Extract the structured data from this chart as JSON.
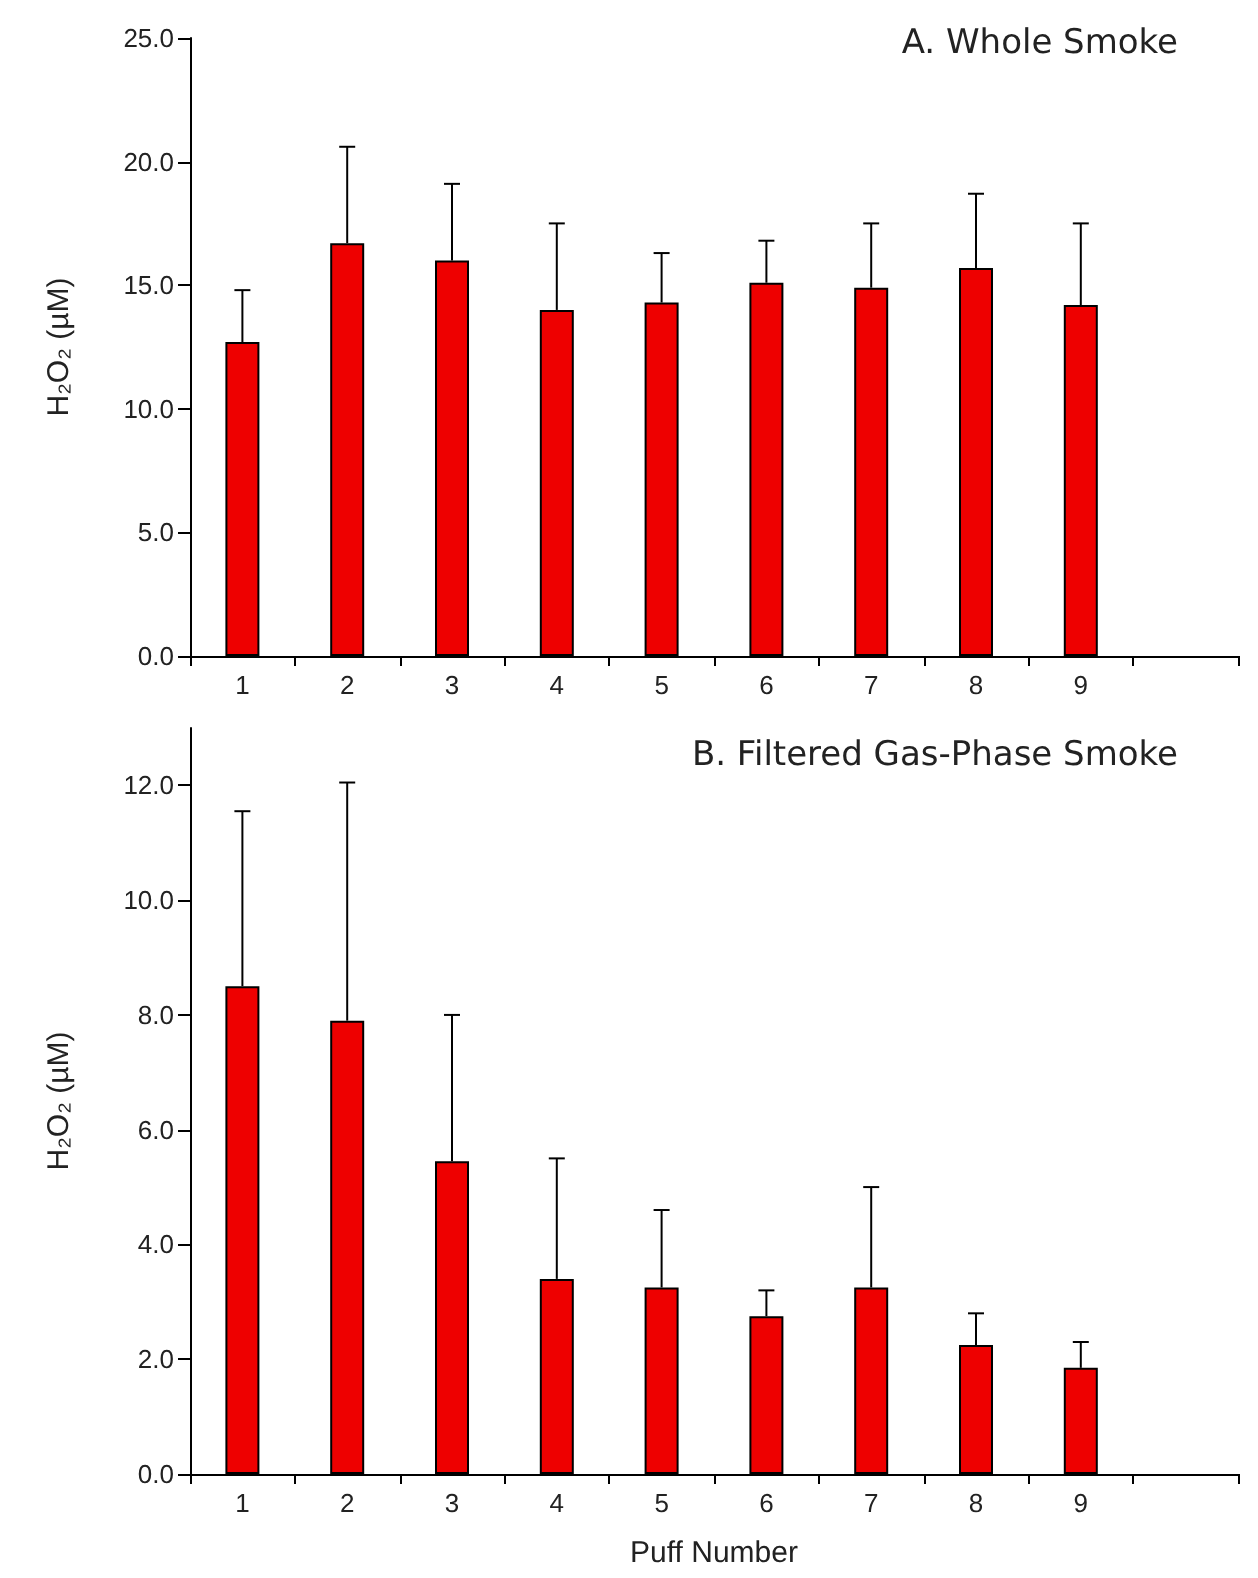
{
  "chart_data": [
    {
      "type": "bar",
      "title": "A. Whole Smoke",
      "ylabel": "H₂O₂ (µM)",
      "categories": [
        "1",
        "2",
        "3",
        "4",
        "5",
        "6",
        "7",
        "8",
        "9",
        null
      ],
      "values": [
        12.7,
        16.7,
        16.0,
        14.0,
        14.3,
        15.1,
        14.9,
        15.7,
        14.2,
        null
      ],
      "errors": [
        [
          12.7,
          14.8
        ],
        [
          16.7,
          20.6
        ],
        [
          16.0,
          19.1
        ],
        [
          14.0,
          17.5
        ],
        [
          14.3,
          16.3
        ],
        [
          15.1,
          16.8
        ],
        [
          14.9,
          17.5
        ],
        [
          15.7,
          18.7
        ],
        [
          14.2,
          17.5
        ],
        null
      ],
      "color": "#ee0000",
      "ylim": [
        0,
        25
      ],
      "yticks": [
        {
          "value": 0,
          "label": "0.0"
        },
        {
          "value": 5,
          "label": "5.0"
        },
        {
          "value": 10,
          "label": "10.0"
        },
        {
          "value": 15,
          "label": "15.0"
        },
        {
          "value": 20,
          "label": "20.0"
        },
        {
          "value": 25,
          "label": "25.0"
        }
      ],
      "grid": false
    },
    {
      "type": "bar",
      "title": "B. Filtered Gas-Phase Smoke",
      "ylabel": "H₂O₂ (µM)",
      "xlabel": "Puff Number",
      "categories": [
        "1",
        "2",
        "3",
        "4",
        "5",
        "6",
        "7",
        "8",
        "9",
        null
      ],
      "values": [
        8.5,
        7.9,
        5.45,
        3.4,
        3.25,
        2.75,
        3.25,
        2.25,
        1.85,
        null
      ],
      "errors": [
        [
          8.5,
          11.55
        ],
        [
          7.9,
          12.05
        ],
        [
          5.45,
          8.0
        ],
        [
          3.4,
          5.5
        ],
        [
          3.25,
          4.6
        ],
        [
          2.75,
          3.2
        ],
        [
          3.25,
          5.0
        ],
        [
          2.25,
          2.8
        ],
        [
          1.85,
          2.3
        ],
        null
      ],
      "color": "#ee0000",
      "ylim": [
        0,
        13
      ],
      "yticks": [
        {
          "value": 0,
          "label": "0.0"
        },
        {
          "value": 2,
          "label": "2.0"
        },
        {
          "value": 4,
          "label": "4.0"
        },
        {
          "value": 6,
          "label": "6.0"
        },
        {
          "value": 8,
          "label": "8.0"
        },
        {
          "value": 10,
          "label": "10.0"
        },
        {
          "value": 12,
          "label": "12.0"
        }
      ],
      "grid": false
    }
  ]
}
